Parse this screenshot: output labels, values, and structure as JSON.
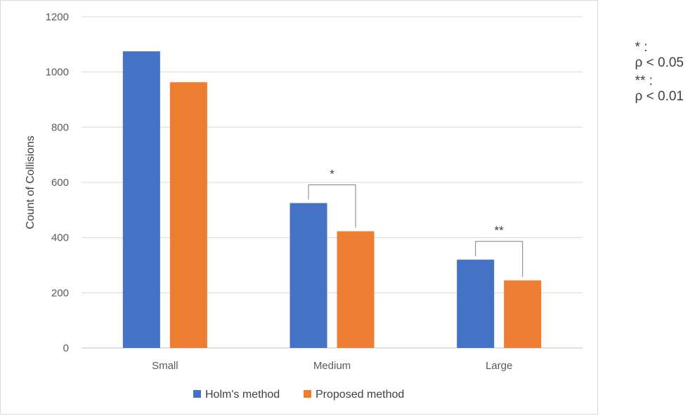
{
  "chart_data": {
    "type": "bar",
    "title": "",
    "xlabel": "",
    "ylabel": "Count of Collisions",
    "ylim": [
      0,
      1200
    ],
    "yticks": [
      0,
      200,
      400,
      600,
      800,
      1000,
      1200
    ],
    "categories": [
      "Small",
      "Medium",
      "Large"
    ],
    "series": [
      {
        "name": "Holm's method",
        "color": "#4472C4",
        "values": [
          1075,
          525,
          320
        ]
      },
      {
        "name": "Proposed method",
        "color": "#ED7D31",
        "values": [
          963,
          423,
          245
        ]
      }
    ],
    "grid": true,
    "legend": "bottom",
    "annotations": [
      {
        "category": "Medium",
        "label": "*"
      },
      {
        "category": "Large",
        "label": "**"
      }
    ]
  },
  "significance_key": [
    {
      "symbol": "* :",
      "text": "ρ < 0.05"
    },
    {
      "symbol": "** :",
      "text": "ρ < 0.01"
    }
  ]
}
